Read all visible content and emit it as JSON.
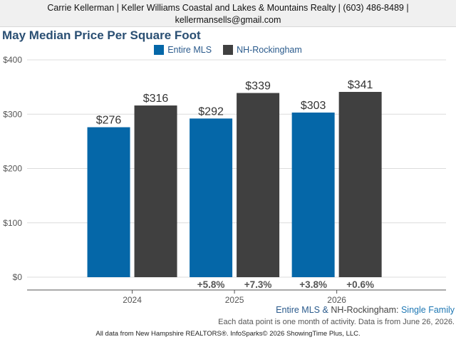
{
  "header": {
    "line1": "Carrie Kellerman | Keller Williams Coastal and Lakes & Mountains Realty | (603) 486-8489 |",
    "line2": "kellermansells@gmail.com"
  },
  "chart_data": {
    "type": "bar",
    "title": "May Median Price Per Square Foot",
    "categories": [
      "2024",
      "2025",
      "2026"
    ],
    "series": [
      {
        "name": "Entire MLS",
        "color": "#0567a8",
        "values": [
          276,
          292,
          303
        ],
        "value_labels": [
          "$276",
          "$292",
          "$303"
        ],
        "change_labels": [
          "",
          "+5.8%",
          "+3.8%"
        ]
      },
      {
        "name": "NH-Rockingham",
        "color": "#404040",
        "values": [
          316,
          339,
          341
        ],
        "value_labels": [
          "$316",
          "$339",
          "$341"
        ],
        "change_labels": [
          "",
          "+7.3%",
          "+0.6%"
        ]
      }
    ],
    "ylim": [
      0,
      400
    ],
    "yticks": [
      0,
      100,
      200,
      300,
      400
    ],
    "ytick_labels": [
      "$0",
      "$100",
      "$200",
      "$300",
      "$400"
    ],
    "grid": true,
    "legend_position": "top-center"
  },
  "footer": {
    "entire": "Entire MLS",
    "amp": " & ",
    "nh": "NH-Rockingham",
    "colon": ": ",
    "property_type": "Single Family",
    "note": "Each data point is one month of activity. Data is from June 26, 2026.",
    "source": "All data from New Hampshire REALTORS®. InfoSparks© 2026 ShowingTime Plus, LLC."
  }
}
